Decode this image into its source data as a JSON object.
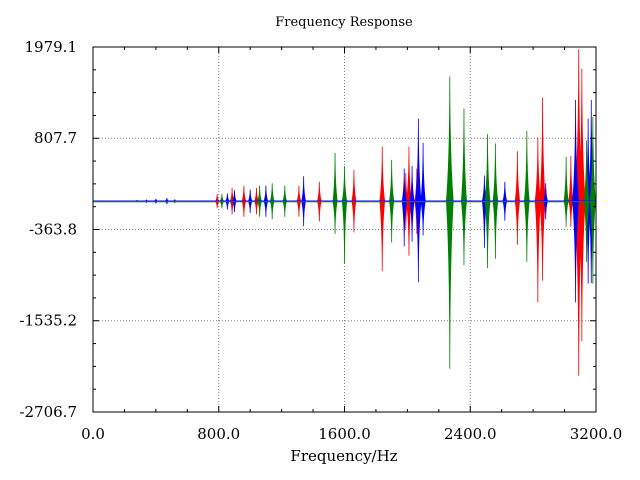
{
  "chart_data": {
    "type": "line",
    "title": "Frequency Response",
    "xlabel": "Frequency/Hz",
    "ylabel": "",
    "xlim": [
      0,
      3200
    ],
    "ylim": [
      -2706.7,
      1979.1
    ],
    "grid": true,
    "x_ticks": [
      0,
      800,
      1600,
      2400,
      3200
    ],
    "x_tick_labels": [
      "0.0",
      "800.0",
      "1600.0",
      "2400.0",
      "3200.0"
    ],
    "y_ticks": [
      1979.1,
      807.7,
      -363.8,
      -1535.2,
      -2706.7
    ],
    "y_tick_labels": [
      "1979.1",
      "807.7",
      "-363.8",
      "-1535.2",
      "-2706.7"
    ],
    "baseline": 0,
    "series": [
      {
        "color": "#ff0000",
        "spikes": [
          {
            "x": 790,
            "top": 90,
            "bottom": -90
          },
          {
            "x": 885,
            "top": 170,
            "bottom": -170
          },
          {
            "x": 960,
            "top": 200,
            "bottom": -200
          },
          {
            "x": 1040,
            "top": 170,
            "bottom": -170
          },
          {
            "x": 1310,
            "top": 200,
            "bottom": -200
          },
          {
            "x": 1440,
            "top": 250,
            "bottom": -260
          },
          {
            "x": 1660,
            "top": 400,
            "bottom": -400
          },
          {
            "x": 1840,
            "top": 700,
            "bottom": -900
          },
          {
            "x": 1990,
            "top": 360,
            "bottom": -360
          },
          {
            "x": 2010,
            "top": 700,
            "bottom": -700
          },
          {
            "x": 2060,
            "top": 420,
            "bottom": -420
          },
          {
            "x": 2700,
            "top": 640,
            "bottom": -560
          },
          {
            "x": 2830,
            "top": 820,
            "bottom": -1300
          },
          {
            "x": 2860,
            "top": 1330,
            "bottom": -1020
          },
          {
            "x": 3040,
            "top": 580,
            "bottom": -330
          },
          {
            "x": 3090,
            "top": 1950,
            "bottom": -2240
          },
          {
            "x": 3110,
            "top": 1700,
            "bottom": -1800
          }
        ]
      },
      {
        "color": "#0000ff",
        "spikes": [
          {
            "x": 340,
            "top": 20,
            "bottom": -20
          },
          {
            "x": 400,
            "top": 30,
            "bottom": -30
          },
          {
            "x": 470,
            "top": 40,
            "bottom": -40
          },
          {
            "x": 855,
            "top": 100,
            "bottom": -110
          },
          {
            "x": 900,
            "top": 140,
            "bottom": -140
          },
          {
            "x": 1000,
            "top": 150,
            "bottom": -150
          },
          {
            "x": 1100,
            "top": 200,
            "bottom": -200
          },
          {
            "x": 1340,
            "top": 320,
            "bottom": -320
          },
          {
            "x": 1980,
            "top": 420,
            "bottom": -580
          },
          {
            "x": 2030,
            "top": 450,
            "bottom": -520
          },
          {
            "x": 2070,
            "top": 1060,
            "bottom": -1040
          },
          {
            "x": 2100,
            "top": 750,
            "bottom": -440
          },
          {
            "x": 2490,
            "top": 330,
            "bottom": -600
          },
          {
            "x": 2620,
            "top": 250,
            "bottom": -250
          },
          {
            "x": 2880,
            "top": 230,
            "bottom": -230
          },
          {
            "x": 3070,
            "top": 1300,
            "bottom": -1300
          },
          {
            "x": 3150,
            "top": 1060,
            "bottom": -1060
          },
          {
            "x": 3170,
            "top": 1300,
            "bottom": -1050
          }
        ]
      },
      {
        "color": "#008000",
        "spikes": [
          {
            "x": 280,
            "top": 15,
            "bottom": -15
          },
          {
            "x": 520,
            "top": 25,
            "bottom": -25
          },
          {
            "x": 820,
            "top": 90,
            "bottom": -90
          },
          {
            "x": 1060,
            "top": 200,
            "bottom": -200
          },
          {
            "x": 1140,
            "top": 230,
            "bottom": -230
          },
          {
            "x": 1220,
            "top": 200,
            "bottom": -200
          },
          {
            "x": 1540,
            "top": 620,
            "bottom": -420
          },
          {
            "x": 1600,
            "top": 450,
            "bottom": -800
          },
          {
            "x": 1900,
            "top": 530,
            "bottom": -530
          },
          {
            "x": 2270,
            "top": 1600,
            "bottom": -2150
          },
          {
            "x": 2360,
            "top": 1190,
            "bottom": -820
          },
          {
            "x": 2510,
            "top": 860,
            "bottom": -860
          },
          {
            "x": 2560,
            "top": 740,
            "bottom": -740
          },
          {
            "x": 2760,
            "top": 900,
            "bottom": -780
          },
          {
            "x": 3010,
            "top": 570,
            "bottom": -330
          },
          {
            "x": 3140,
            "top": 780,
            "bottom": -780
          },
          {
            "x": 3180,
            "top": 1080,
            "bottom": -1060
          }
        ]
      }
    ]
  }
}
